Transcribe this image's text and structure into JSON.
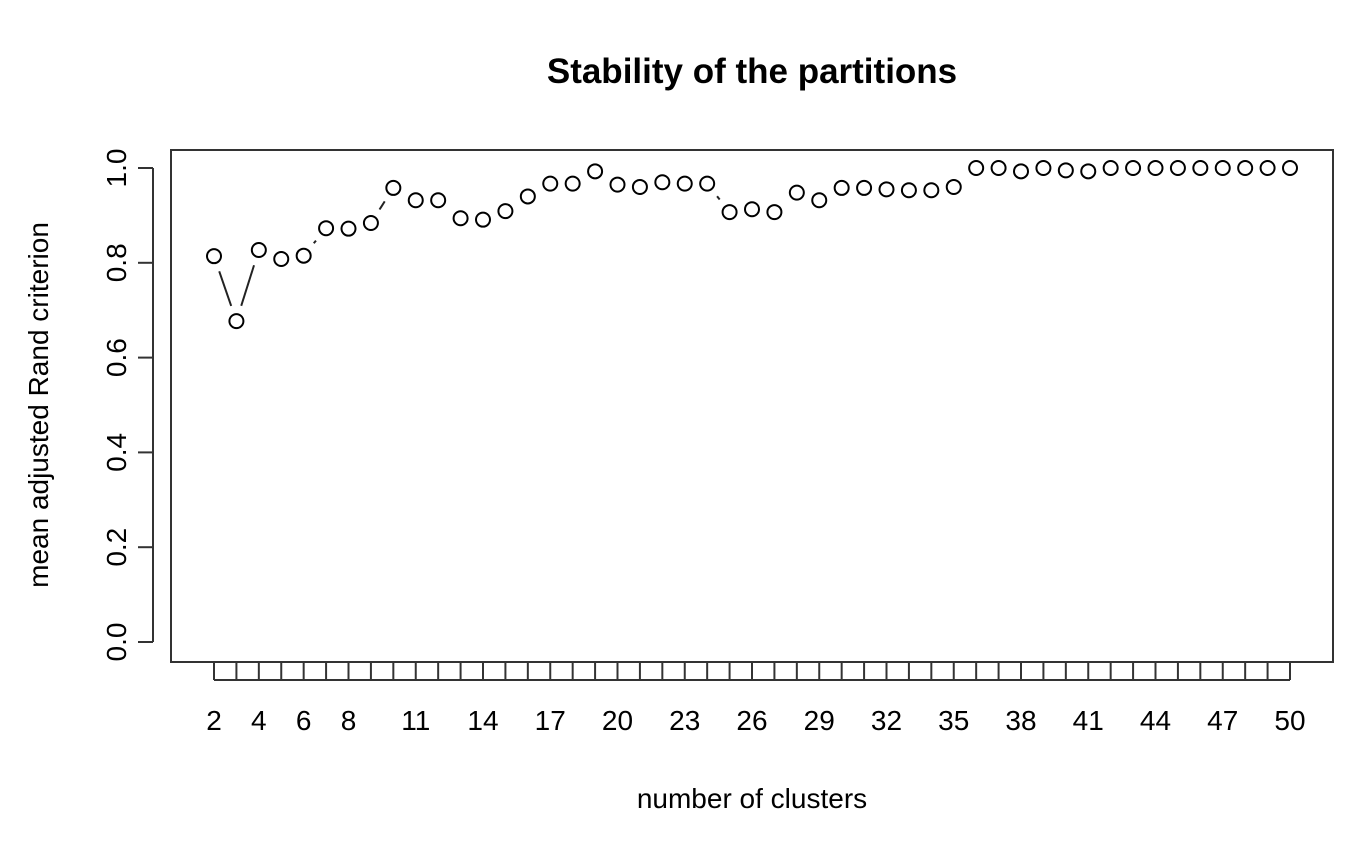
{
  "chart_data": {
    "type": "scatter",
    "title": "Stability of the partitions",
    "xlabel": "number of clusters",
    "ylabel": "mean adjusted Rand criterion",
    "xlim": [
      2,
      50
    ],
    "ylim": [
      0,
      1
    ],
    "grid": false,
    "legend": "none",
    "x_tick_labels": [
      2,
      4,
      6,
      8,
      11,
      14,
      17,
      20,
      23,
      26,
      29,
      32,
      35,
      38,
      41,
      44,
      47,
      50
    ],
    "y_tick_labels": [
      "0.0",
      "0.2",
      "0.4",
      "0.6",
      "0.8",
      "1.0"
    ],
    "x": [
      2,
      3,
      4,
      5,
      6,
      7,
      8,
      9,
      10,
      11,
      12,
      13,
      14,
      15,
      16,
      17,
      18,
      19,
      20,
      21,
      22,
      23,
      24,
      25,
      26,
      27,
      28,
      29,
      30,
      31,
      32,
      33,
      34,
      35,
      36,
      37,
      38,
      39,
      40,
      41,
      42,
      43,
      44,
      45,
      46,
      47,
      48,
      49,
      50
    ],
    "y": [
      0.814,
      0.677,
      0.827,
      0.808,
      0.815,
      0.873,
      0.872,
      0.884,
      0.958,
      0.932,
      0.932,
      0.894,
      0.891,
      0.909,
      0.94,
      0.967,
      0.967,
      0.993,
      0.965,
      0.96,
      0.97,
      0.967,
      0.967,
      0.907,
      0.913,
      0.907,
      0.948,
      0.932,
      0.958,
      0.958,
      0.955,
      0.953,
      0.953,
      0.96,
      1.0,
      1.0,
      0.993,
      1.0,
      0.995,
      0.993,
      1.0,
      1.0,
      1.0,
      1.0,
      1.0,
      1.0,
      1.0,
      1.0,
      1.0
    ],
    "marker_color": "#000000"
  }
}
